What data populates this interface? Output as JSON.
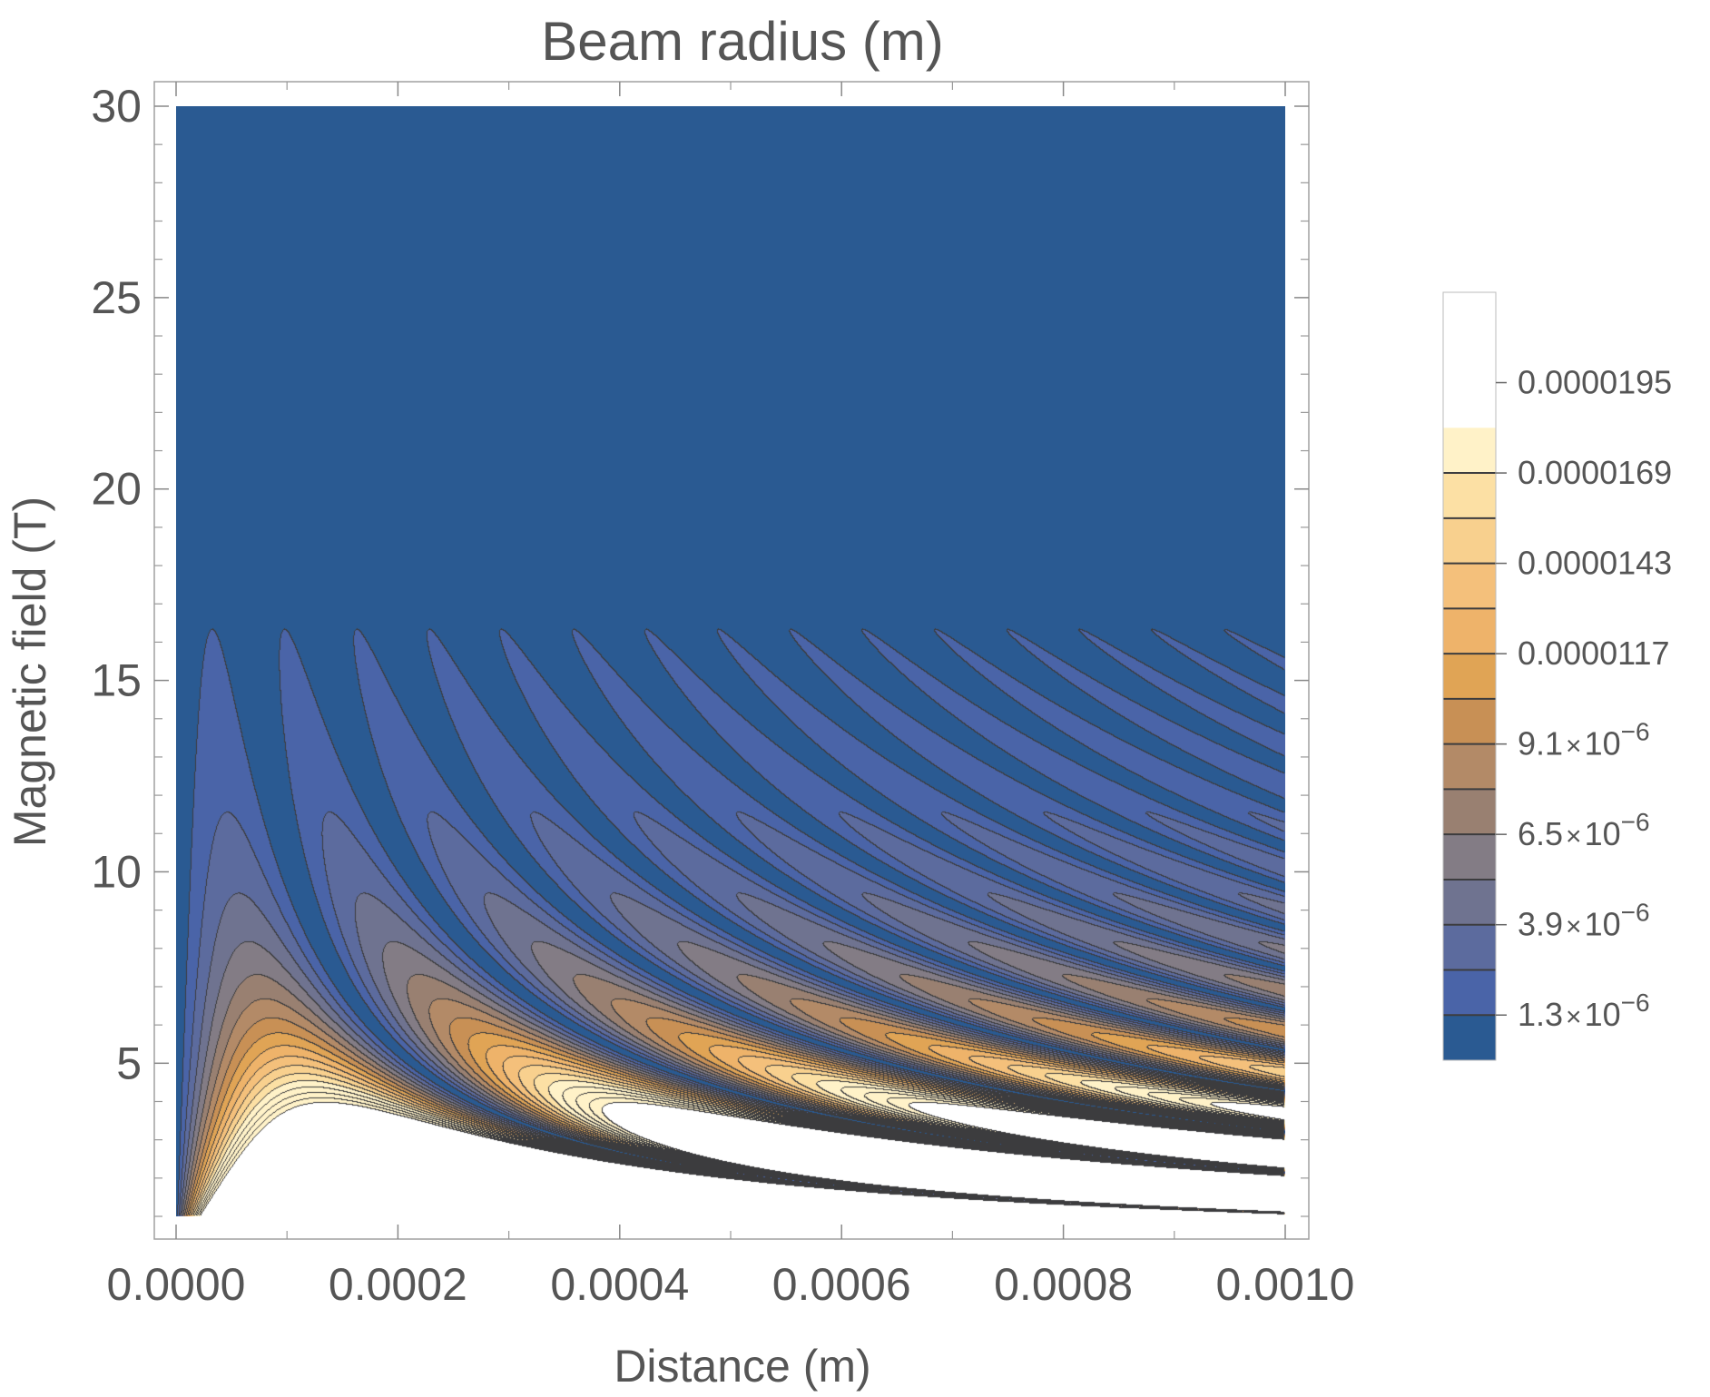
{
  "chart_data": {
    "type": "heatmap",
    "subtype": "contour",
    "title": "Beam radius (m)",
    "xlabel": "Distance (m)",
    "ylabel": "Magnetic field (T)",
    "xlim": [
      0.0,
      0.001
    ],
    "ylim": [
      0.5,
      30.6
    ],
    "data_domain": {
      "x": [
        0.0,
        0.001
      ],
      "y": [
        1.0,
        30.0
      ]
    },
    "x_ticks": [
      {
        "value": 0.0,
        "label": "0.0000"
      },
      {
        "value": 0.0002,
        "label": "0.0002"
      },
      {
        "value": 0.0004,
        "label": "0.0004"
      },
      {
        "value": 0.0006,
        "label": "0.0006"
      },
      {
        "value": 0.0008,
        "label": "0.0008"
      },
      {
        "value": 0.001,
        "label": "0.0010"
      }
    ],
    "x_minor_ticks": [
      0.0001,
      0.0003,
      0.0005,
      0.0007,
      0.0009
    ],
    "y_ticks": [
      {
        "value": 5,
        "label": "5"
      },
      {
        "value": 10,
        "label": "10"
      },
      {
        "value": 15,
        "label": "15"
      },
      {
        "value": 20,
        "label": "20"
      },
      {
        "value": 25,
        "label": "25"
      },
      {
        "value": 30,
        "label": "30"
      }
    ],
    "y_minor_ticks": [
      1,
      2,
      3,
      4,
      6,
      7,
      8,
      9,
      11,
      12,
      13,
      14,
      16,
      17,
      18,
      19,
      21,
      22,
      23,
      24,
      26,
      27,
      28,
      29
    ],
    "colorbar": {
      "range": [
        0.0,
        2.21e-05
      ],
      "level_step": 1.3e-06,
      "ticks": [
        {
          "value": 1.3e-06,
          "mantissa": "1.3",
          "exponent": "−6"
        },
        {
          "value": 3.9e-06,
          "mantissa": "3.9",
          "exponent": "−6"
        },
        {
          "value": 6.5e-06,
          "mantissa": "6.5",
          "exponent": "−6"
        },
        {
          "value": 9.1e-06,
          "mantissa": "9.1",
          "exponent": "−6"
        },
        {
          "value": 1.17e-05,
          "label": "0.0000117"
        },
        {
          "value": 1.43e-05,
          "label": "0.0000143"
        },
        {
          "value": 1.69e-05,
          "label": "0.0000169"
        },
        {
          "value": 1.95e-05,
          "label": "0.0000195"
        }
      ],
      "times_sign": "×",
      "base": "10",
      "colors": [
        "#2a5a92",
        "#4a64a8",
        "#5c6b9e",
        "#6f7390",
        "#837c85",
        "#998071",
        "#b38a67",
        "#c89055",
        "#e0a455",
        "#eeb36a",
        "#f4c07b",
        "#f8d08e",
        "#fce0a4",
        "#fff2c8"
      ]
    },
    "grid": false,
    "legend": "right"
  }
}
